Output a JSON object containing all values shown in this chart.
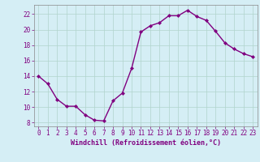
{
  "x": [
    0,
    1,
    2,
    3,
    4,
    5,
    6,
    7,
    8,
    9,
    10,
    11,
    12,
    13,
    14,
    15,
    16,
    17,
    18,
    19,
    20,
    21,
    22,
    23
  ],
  "y": [
    14,
    13,
    11,
    10.1,
    10.1,
    9,
    8.3,
    8.2,
    10.8,
    11.8,
    15,
    19.7,
    20.5,
    20.9,
    21.8,
    21.8,
    22.5,
    21.7,
    21.2,
    19.8,
    18.3,
    17.5,
    16.9,
    16.5
  ],
  "line_color": "#800080",
  "marker": "D",
  "marker_size": 2.0,
  "bg_color": "#d5eef5",
  "grid_color": "#b0d4cc",
  "xlabel": "Windchill (Refroidissement éolien,°C)",
  "xlabel_color": "#800080",
  "tick_color": "#800080",
  "spine_color": "#888888",
  "ylim": [
    7.5,
    23.2
  ],
  "xlim": [
    -0.5,
    23.5
  ],
  "yticks": [
    8,
    10,
    12,
    14,
    16,
    18,
    20,
    22
  ],
  "xticks": [
    0,
    1,
    2,
    3,
    4,
    5,
    6,
    7,
    8,
    9,
    10,
    11,
    12,
    13,
    14,
    15,
    16,
    17,
    18,
    19,
    20,
    21,
    22,
    23
  ],
  "tick_fontsize": 5.5,
  "xlabel_fontsize": 6.0,
  "linewidth": 1.0
}
